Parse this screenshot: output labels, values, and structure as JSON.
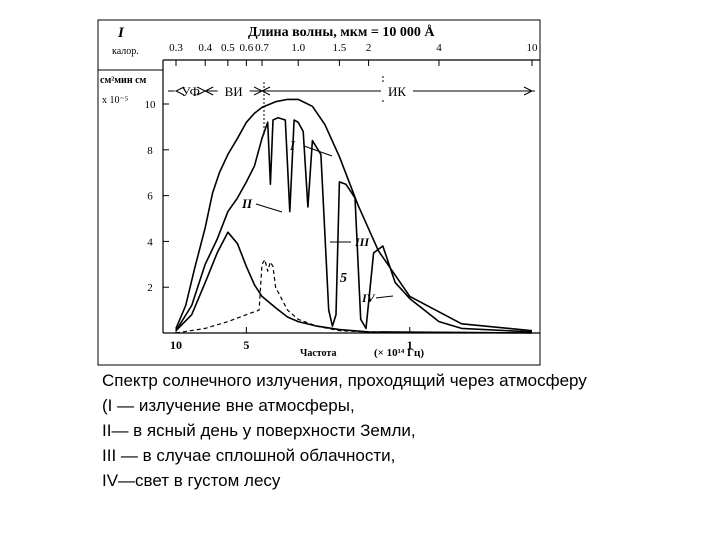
{
  "chart_data": {
    "type": "line",
    "y_axis": {
      "symbol": "I",
      "unit_line1": "калор.",
      "unit_line2": "см²мин см",
      "multiplier": "x 10⁻⁵",
      "ticks": [
        2,
        4,
        6,
        8,
        10
      ],
      "ylim": [
        0,
        11
      ]
    },
    "top_axis": {
      "title": "Длина волны,  мкм = 10 000 Å",
      "ticks": [
        "0.3",
        "0.4",
        "0.5",
        "0.6",
        "0.7",
        "1.0",
        "1.5",
        "2",
        "4",
        "10"
      ]
    },
    "bottom_axis": {
      "title": "Частота",
      "unit": "(× 10¹⁴ Гц)",
      "ticks": [
        "10",
        "5",
        "1"
      ]
    },
    "regions": [
      {
        "label": "УФ",
        "from_um": 0.3,
        "to_um": 0.4
      },
      {
        "label": "ВИ",
        "from_um": 0.4,
        "to_um": 0.7
      },
      {
        "label": "ИК",
        "from_um": 0.7,
        "to_um": 10
      }
    ],
    "series": [
      {
        "name": "I",
        "style": "solid",
        "x_um": [
          0.3,
          0.33,
          0.36,
          0.4,
          0.43,
          0.46,
          0.5,
          0.55,
          0.6,
          0.65,
          0.7,
          0.8,
          0.9,
          1.0,
          1.15,
          1.3,
          1.5,
          1.8,
          2.2,
          3.0,
          5.0,
          10.0
        ],
        "y": [
          0.2,
          1.2,
          2.8,
          4.6,
          6.1,
          7.0,
          7.8,
          8.5,
          9.2,
          9.6,
          9.85,
          10.1,
          10.2,
          10.2,
          9.9,
          9.1,
          7.7,
          5.6,
          3.6,
          1.6,
          0.4,
          0.1
        ]
      },
      {
        "name": "II",
        "style": "solid",
        "x_um": [
          0.3,
          0.35,
          0.4,
          0.45,
          0.5,
          0.55,
          0.6,
          0.65,
          0.7,
          0.74,
          0.76,
          0.78,
          0.82,
          0.88,
          0.92,
          0.96,
          1.0,
          1.05,
          1.1,
          1.15,
          1.25,
          1.35,
          1.4,
          1.45,
          1.5,
          1.6,
          1.75,
          1.85,
          1.95,
          2.1,
          2.3,
          2.6,
          3.0,
          4.0,
          5.0,
          10.0
        ],
        "y": [
          0.1,
          1.2,
          3.0,
          4.1,
          5.3,
          5.9,
          6.6,
          7.3,
          8.5,
          9.2,
          6.5,
          9.3,
          9.4,
          9.3,
          5.3,
          9.3,
          9.2,
          8.8,
          5.5,
          8.4,
          7.8,
          1.0,
          0.3,
          0.8,
          6.6,
          6.5,
          5.9,
          0.6,
          0.2,
          3.5,
          3.8,
          2.2,
          1.5,
          0.5,
          0.2,
          0.05
        ]
      },
      {
        "name": "III",
        "style": "solid",
        "x_um": [
          0.3,
          0.35,
          0.4,
          0.45,
          0.5,
          0.55,
          0.6,
          0.65,
          0.7,
          0.8,
          0.9,
          1.0,
          1.2,
          1.5,
          2.0,
          10.0
        ],
        "y": [
          0.1,
          0.8,
          2.2,
          3.5,
          4.4,
          3.9,
          2.9,
          2.1,
          1.6,
          1.1,
          0.7,
          0.5,
          0.3,
          0.15,
          0.05,
          0.0
        ]
      },
      {
        "name": "IV",
        "style": "dashed",
        "x_um": [
          0.3,
          0.4,
          0.5,
          0.6,
          0.68,
          0.7,
          0.72,
          0.74,
          0.76,
          0.78,
          0.8,
          0.9,
          1.0,
          1.2,
          1.5,
          2.0,
          10.0
        ],
        "y": [
          0.0,
          0.2,
          0.5,
          0.8,
          1.0,
          3.0,
          3.2,
          2.7,
          3.1,
          2.9,
          2.0,
          1.0,
          0.6,
          0.3,
          0.1,
          0.05,
          0.0
        ]
      }
    ],
    "annotations": [
      {
        "text": "I",
        "series": "I"
      },
      {
        "text": "II",
        "series": "II"
      },
      {
        "text": "III",
        "series": "III"
      },
      {
        "text": "5",
        "series": "III"
      },
      {
        "text": "IV",
        "series": "IV"
      }
    ]
  },
  "caption": [
    "Спектр солнечного излучения, проходящий через атмосферу",
    "(I — излучение вне атмосферы,",
    "II— в ясный день у поверхности Земли,",
    "III — в случае сплошной облачности,",
    "IV—свет в густом лесу"
  ]
}
